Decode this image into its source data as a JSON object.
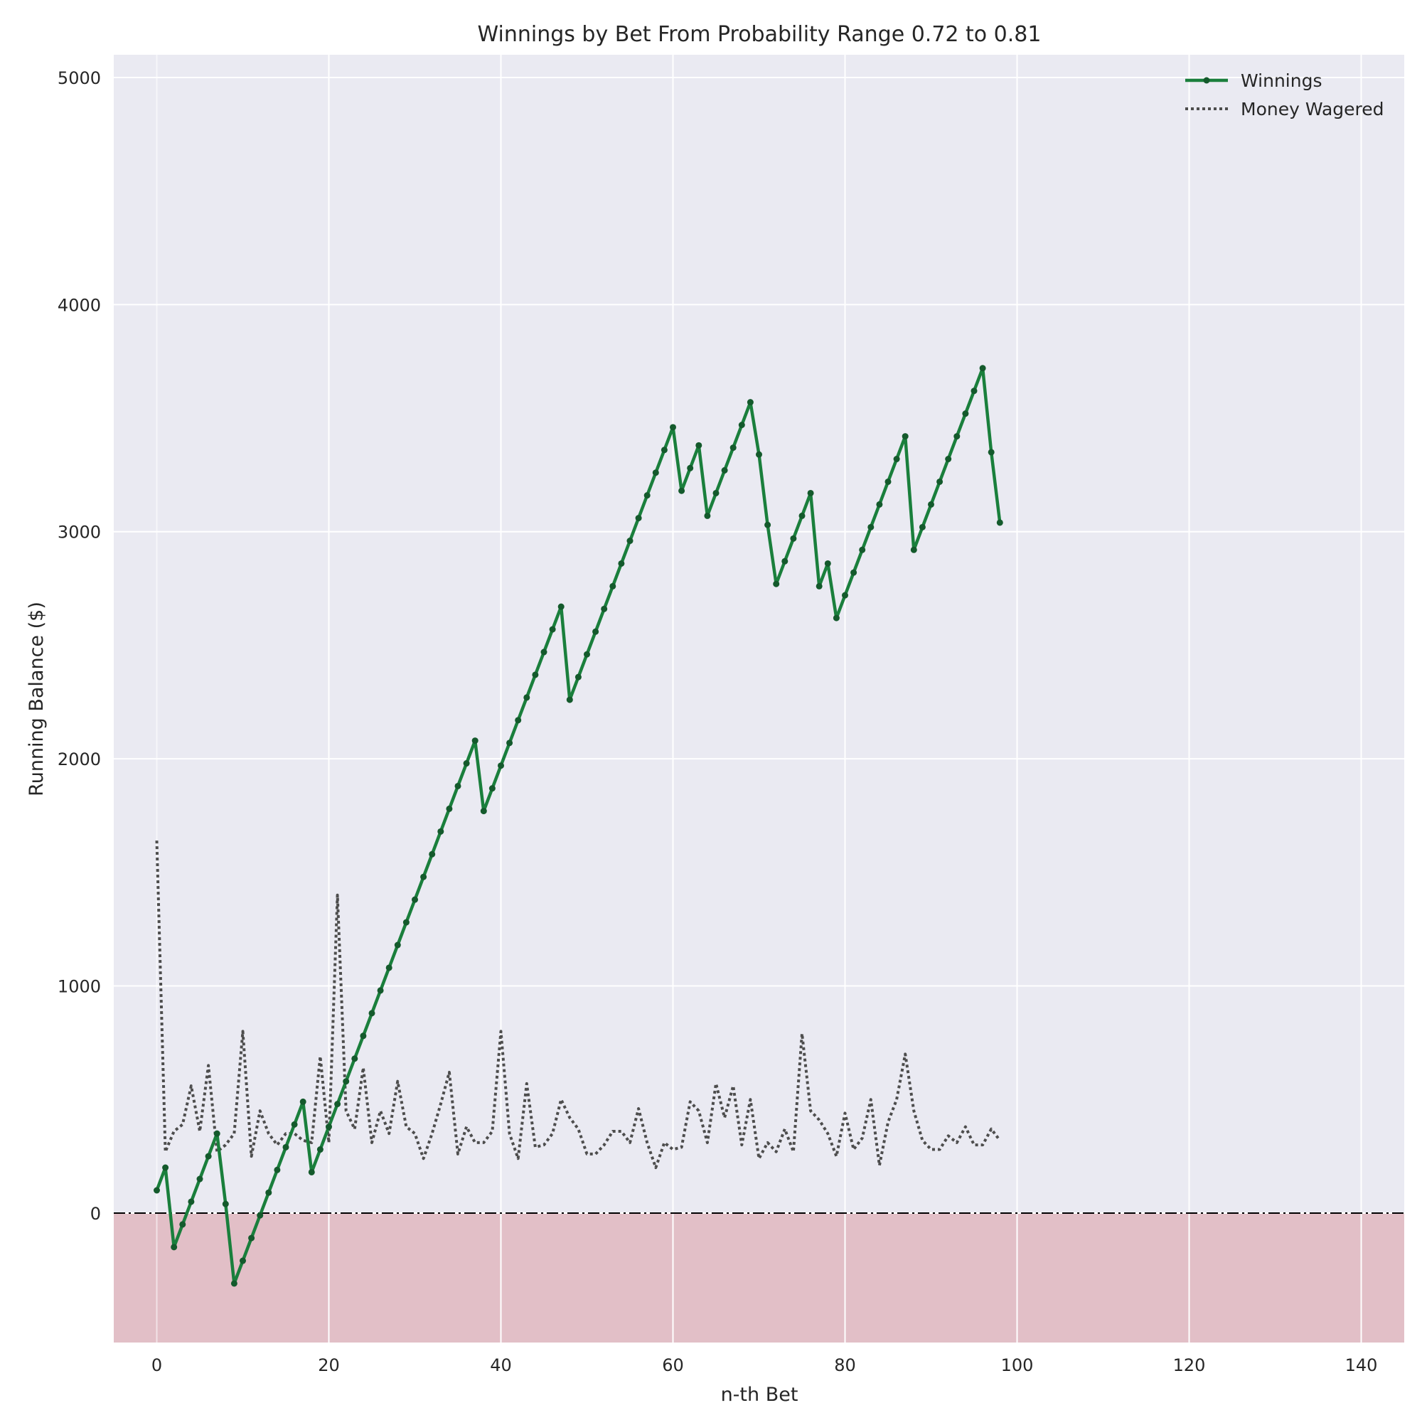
{
  "chart_data": {
    "type": "line",
    "title": "Winnings by Bet From Probability Range 0.72 to 0.81",
    "xlabel": "n-th Bet",
    "ylabel": "Running Balance ($)",
    "xlim": [
      -5,
      145
    ],
    "ylim": [
      -570,
      5100
    ],
    "xticks": [
      0,
      20,
      40,
      60,
      80,
      100,
      120,
      140
    ],
    "yticks": [
      0,
      1000,
      2000,
      3000,
      4000,
      5000
    ],
    "grid": true,
    "legend_position": "top-right",
    "colors": {
      "background": "#eaeaf2",
      "grid": "#ffffff",
      "winnings": "#1a7f3c",
      "winnings_marker": "#145a2c",
      "wagered": "#4d4d4d",
      "negative_region": "#e2bfc7",
      "zero_line": "#000000"
    },
    "series": [
      {
        "name": "Winnings",
        "style": "solid-with-markers",
        "values": [
          100,
          200,
          -150,
          -50,
          50,
          150,
          250,
          350,
          40,
          -310,
          -210,
          -110,
          -10,
          90,
          190,
          290,
          390,
          490,
          180,
          280,
          380,
          480,
          580,
          680,
          780,
          880,
          980,
          1080,
          1180,
          1280,
          1380,
          1480,
          1580,
          1680,
          1780,
          1880,
          1980,
          2080,
          1770,
          1870,
          1970,
          2070,
          2170,
          2270,
          2370,
          2470,
          2570,
          2670,
          2260,
          2360,
          2460,
          2560,
          2660,
          2760,
          2860,
          2960,
          3060,
          3160,
          3260,
          3360,
          3460,
          3180,
          3280,
          3380,
          3070,
          3170,
          3270,
          3370,
          3470,
          3570,
          3340,
          3030,
          2770,
          2870,
          2970,
          3070,
          3170,
          2760,
          2860,
          2620,
          2720,
          2820,
          2920,
          3020,
          3120,
          3220,
          3320,
          3420,
          2920,
          3020,
          3120,
          3220,
          3320,
          3420,
          3520,
          3620,
          3720,
          3350,
          3040
        ]
      },
      {
        "name": "Money Wagered",
        "style": "dotted",
        "values": [
          1640,
          270,
          360,
          390,
          560,
          360,
          650,
          270,
          300,
          350,
          800,
          250,
          450,
          350,
          300,
          350,
          350,
          320,
          310,
          690,
          310,
          1400,
          450,
          370,
          640,
          310,
          450,
          350,
          580,
          380,
          350,
          240,
          350,
          480,
          620,
          260,
          380,
          310,
          310,
          360,
          800,
          350,
          240,
          570,
          290,
          300,
          350,
          500,
          420,
          370,
          260,
          260,
          300,
          360,
          360,
          310,
          460,
          310,
          200,
          310,
          280,
          290,
          490,
          450,
          310,
          570,
          420,
          560,
          300,
          500,
          240,
          310,
          270,
          370,
          270,
          790,
          450,
          410,
          350,
          250,
          440,
          280,
          330,
          500,
          210,
          400,
          500,
          700,
          450,
          320,
          280,
          280,
          340,
          310,
          380,
          300,
          300,
          370,
          320
        ]
      }
    ]
  }
}
